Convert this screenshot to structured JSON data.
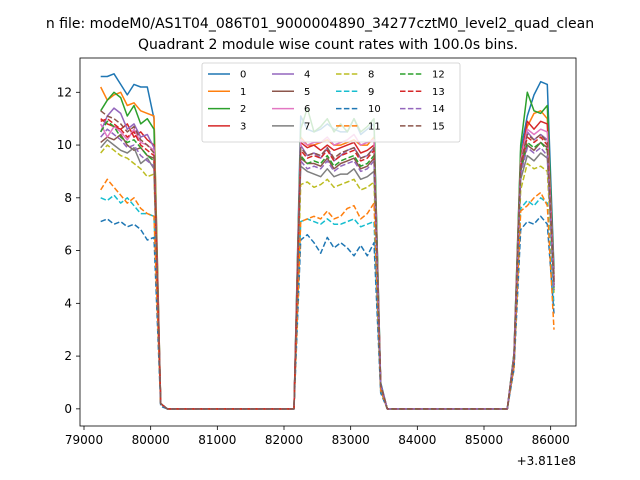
{
  "chart_data": {
    "type": "line",
    "suptitle": "n file: modeM0/AS1T04_086T01_9000004890_34277cztM0_level2_quad_clean",
    "title": "Quadrant 2 module wise count rates with 100.0s bins.",
    "xlabel": "",
    "ylabel": "",
    "x_offset_label": "+3.811e8",
    "xlim": [
      78940,
      86380
    ],
    "ylim": [
      -0.65,
      13.3
    ],
    "x_ticks": [
      79000,
      80000,
      81000,
      82000,
      83000,
      84000,
      85000,
      86000
    ],
    "x_tick_labels": [
      "79000",
      "80000",
      "81000",
      "82000",
      "83000",
      "84000",
      "85000",
      "86000"
    ],
    "y_ticks": [
      0,
      2,
      4,
      6,
      8,
      10,
      12
    ],
    "y_tick_labels": [
      "0",
      "2",
      "4",
      "6",
      "8",
      "10",
      "12"
    ],
    "legend": {
      "placement": "top-center",
      "columns": 4
    },
    "x": [
      79250,
      79350,
      79450,
      79550,
      79650,
      79750,
      79850,
      79950,
      80050,
      80150,
      80250,
      80350,
      80450,
      81000,
      82000,
      82150,
      82250,
      82350,
      82450,
      82550,
      82650,
      82750,
      82850,
      82950,
      83050,
      83150,
      83250,
      83350,
      83450,
      83550,
      83650,
      84000,
      85000,
      85350,
      85450,
      85550,
      85650,
      85750,
      85850,
      85950,
      86050
    ],
    "series": [
      {
        "name": "0",
        "color": "#1f77b4",
        "dash": "solid",
        "values": [
          12.6,
          12.6,
          12.7,
          12.3,
          11.9,
          12.3,
          12.2,
          12.2,
          11.0,
          0.2,
          0,
          0,
          0,
          0,
          0,
          0,
          11.1,
          10.6,
          10.5,
          10.6,
          10.8,
          10.6,
          10.5,
          10.5,
          11.0,
          10.4,
          10.6,
          10.8,
          1.0,
          0,
          0,
          0,
          0,
          0,
          2.1,
          9.8,
          11.1,
          11.9,
          12.4,
          12.3,
          5.3
        ]
      },
      {
        "name": "1",
        "color": "#ff7f0e",
        "dash": "solid",
        "values": [
          12.2,
          11.7,
          11.9,
          12.0,
          11.5,
          11.6,
          11.3,
          11.2,
          11.1,
          0.2,
          0,
          0,
          0,
          0,
          0,
          0,
          10.3,
          10.0,
          10.0,
          10.1,
          10.2,
          10.0,
          10.0,
          10.1,
          10.2,
          10.0,
          10.0,
          10.3,
          0.9,
          0,
          0,
          0,
          0,
          0,
          2.0,
          9.5,
          10.7,
          11.2,
          11.3,
          11.0,
          5.0
        ]
      },
      {
        "name": "2",
        "color": "#2ca02c",
        "dash": "solid",
        "values": [
          11.3,
          11.7,
          12.0,
          11.8,
          11.1,
          11.5,
          10.8,
          11.0,
          10.6,
          0.2,
          0,
          0,
          0,
          0,
          0,
          0,
          10.6,
          11.4,
          10.5,
          10.7,
          11.0,
          10.5,
          10.8,
          10.5,
          11.0,
          10.5,
          10.7,
          11.0,
          0.9,
          0,
          0,
          0,
          0,
          0,
          2.1,
          10.0,
          12.0,
          11.3,
          11.2,
          11.5,
          5.1
        ]
      },
      {
        "name": "3",
        "color": "#d62728",
        "dash": "solid",
        "values": [
          11.0,
          10.8,
          10.7,
          10.6,
          10.8,
          10.3,
          10.5,
          10.2,
          10.0,
          0.2,
          0,
          0,
          0,
          0,
          0,
          0,
          10.1,
          9.9,
          10.0,
          9.8,
          10.0,
          9.8,
          9.9,
          10.0,
          10.1,
          9.7,
          9.8,
          10.0,
          0.9,
          0,
          0,
          0,
          0,
          0,
          2.0,
          9.4,
          10.9,
          10.6,
          10.9,
          10.8,
          4.9
        ]
      },
      {
        "name": "4",
        "color": "#9467bd",
        "dash": "solid",
        "values": [
          10.5,
          11.1,
          11.4,
          11.2,
          10.6,
          10.8,
          10.3,
          10.4,
          9.9,
          0.2,
          0,
          0,
          0,
          0,
          0,
          0,
          10.0,
          9.6,
          9.7,
          9.5,
          9.9,
          9.4,
          9.6,
          9.8,
          9.9,
          9.5,
          9.6,
          9.9,
          0.9,
          0,
          0,
          0,
          0,
          0,
          1.9,
          9.2,
          10.5,
          10.2,
          10.4,
          10.2,
          4.8
        ]
      },
      {
        "name": "5",
        "color": "#8c564b",
        "dash": "solid",
        "values": [
          10.1,
          10.3,
          10.2,
          10.4,
          10.0,
          9.8,
          9.9,
          9.6,
          9.5,
          0.2,
          0,
          0,
          0,
          0,
          0,
          0,
          9.5,
          9.3,
          9.3,
          9.2,
          9.5,
          9.1,
          9.3,
          9.4,
          9.5,
          9.1,
          9.2,
          9.5,
          0.9,
          0,
          0,
          0,
          0,
          0,
          1.9,
          9.0,
          10.0,
          9.8,
          10.1,
          9.9,
          4.7
        ]
      },
      {
        "name": "6",
        "color": "#e377c2",
        "dash": "solid",
        "values": [
          10.8,
          10.3,
          10.7,
          10.5,
          10.2,
          10.6,
          10.1,
          10.0,
          9.8,
          0.2,
          0,
          0,
          0,
          0,
          0,
          0,
          10.2,
          10.0,
          10.1,
          10.1,
          10.3,
          10.0,
          10.1,
          10.2,
          10.4,
          10.0,
          10.1,
          10.2,
          0.9,
          0,
          0,
          0,
          0,
          0,
          2.0,
          9.4,
          10.6,
          10.4,
          10.6,
          10.5,
          4.9
        ]
      },
      {
        "name": "7",
        "color": "#7f7f7f",
        "dash": "solid",
        "values": [
          9.9,
          10.2,
          10.0,
          9.8,
          9.7,
          9.9,
          9.3,
          9.5,
          9.1,
          0.2,
          0,
          0,
          0,
          0,
          0,
          0,
          9.2,
          9.0,
          8.9,
          8.8,
          9.1,
          8.8,
          8.9,
          8.9,
          9.1,
          8.7,
          8.8,
          9.0,
          0.8,
          0,
          0,
          0,
          0,
          0,
          1.8,
          8.7,
          9.6,
          9.4,
          9.7,
          9.5,
          4.5
        ]
      },
      {
        "name": "8",
        "color": "#bcbd22",
        "dash": "dashed",
        "values": [
          9.7,
          10.0,
          9.8,
          9.6,
          9.5,
          9.3,
          9.1,
          8.8,
          8.9,
          0.2,
          0,
          0,
          0,
          0,
          0,
          0,
          8.5,
          8.6,
          8.4,
          8.5,
          8.7,
          8.4,
          8.5,
          8.6,
          8.7,
          8.3,
          8.4,
          8.6,
          0.8,
          0,
          0,
          0,
          0,
          0,
          1.8,
          8.3,
          9.3,
          9.1,
          9.2,
          9.0,
          4.4
        ]
      },
      {
        "name": "9",
        "color": "#17becf",
        "dash": "dashed",
        "values": [
          8.0,
          7.9,
          8.1,
          7.8,
          8.0,
          7.7,
          7.4,
          7.4,
          7.3,
          0.2,
          0,
          0,
          0,
          0,
          0,
          0,
          7.1,
          7.2,
          7.1,
          7.0,
          7.2,
          7.0,
          7.0,
          7.1,
          7.2,
          6.9,
          7.0,
          7.1,
          0.7,
          0,
          0,
          0,
          0,
          0,
          1.6,
          7.6,
          7.9,
          7.7,
          8.0,
          7.8,
          3.9
        ]
      },
      {
        "name": "10",
        "color": "#1f77b4",
        "dash": "dashed",
        "values": [
          7.1,
          7.2,
          7.0,
          7.1,
          6.9,
          7.0,
          6.8,
          6.4,
          6.5,
          0.1,
          0,
          0,
          0,
          0,
          0,
          0,
          6.4,
          6.6,
          6.3,
          5.9,
          6.5,
          6.1,
          6.3,
          6.1,
          5.8,
          6.2,
          5.8,
          6.3,
          0.6,
          0,
          0,
          0,
          0,
          0,
          1.5,
          6.8,
          7.1,
          7.0,
          7.3,
          7.0,
          3.6
        ]
      },
      {
        "name": "11",
        "color": "#ff7f0e",
        "dash": "dashed",
        "values": [
          8.3,
          8.7,
          8.4,
          8.1,
          7.8,
          8.0,
          7.6,
          7.4,
          7.3,
          0.2,
          0,
          0,
          0,
          0,
          0,
          0,
          7.1,
          7.2,
          7.3,
          7.2,
          7.5,
          7.2,
          7.3,
          7.6,
          7.7,
          7.2,
          7.4,
          7.8,
          0.7,
          0,
          0,
          0,
          0,
          0,
          1.6,
          7.5,
          7.7,
          8.0,
          8.2,
          7.7,
          3.0
        ]
      },
      {
        "name": "12",
        "color": "#2ca02c",
        "dash": "dashed",
        "values": [
          10.5,
          10.9,
          10.7,
          10.3,
          10.1,
          10.2,
          9.9,
          9.6,
          9.4,
          0.2,
          0,
          0,
          0,
          0,
          0,
          0,
          9.6,
          9.3,
          9.4,
          9.3,
          9.6,
          9.2,
          9.4,
          9.5,
          9.6,
          9.2,
          9.3,
          9.6,
          0.9,
          0,
          0,
          0,
          0,
          0,
          1.9,
          9.1,
          10.1,
          9.9,
          10.1,
          9.8,
          4.6
        ]
      },
      {
        "name": "13",
        "color": "#d62728",
        "dash": "dashed",
        "values": [
          10.9,
          11.0,
          10.8,
          10.6,
          10.3,
          10.5,
          10.0,
          9.8,
          9.6,
          0.2,
          0,
          0,
          0,
          0,
          0,
          0,
          9.8,
          9.5,
          9.6,
          9.5,
          9.8,
          9.4,
          9.6,
          9.7,
          9.8,
          9.4,
          9.5,
          9.8,
          0.9,
          0,
          0,
          0,
          0,
          0,
          1.9,
          9.2,
          10.3,
          10.1,
          10.3,
          10.0,
          4.7
        ]
      },
      {
        "name": "14",
        "color": "#9467bd",
        "dash": "dashed",
        "values": [
          10.3,
          10.6,
          10.4,
          10.2,
          9.9,
          10.0,
          9.6,
          9.4,
          9.2,
          0.2,
          0,
          0,
          0,
          0,
          0,
          0,
          9.4,
          9.1,
          9.2,
          9.1,
          9.4,
          9.0,
          9.2,
          9.3,
          9.4,
          9.0,
          9.1,
          9.4,
          0.9,
          0,
          0,
          0,
          0,
          0,
          1.9,
          8.9,
          9.9,
          9.7,
          9.9,
          9.6,
          4.5
        ]
      },
      {
        "name": "15",
        "color": "#8c564b",
        "dash": "dashed",
        "values": [
          11.3,
          11.1,
          11.0,
          10.8,
          10.5,
          10.7,
          10.2,
          10.0,
          9.7,
          0.2,
          0,
          0,
          0,
          0,
          0,
          0,
          9.9,
          9.6,
          9.7,
          9.6,
          9.9,
          9.5,
          9.7,
          9.8,
          9.9,
          9.5,
          9.6,
          9.9,
          0.9,
          0,
          0,
          0,
          0,
          0,
          1.9,
          9.3,
          10.4,
          10.2,
          10.4,
          10.1,
          4.8
        ]
      }
    ]
  }
}
